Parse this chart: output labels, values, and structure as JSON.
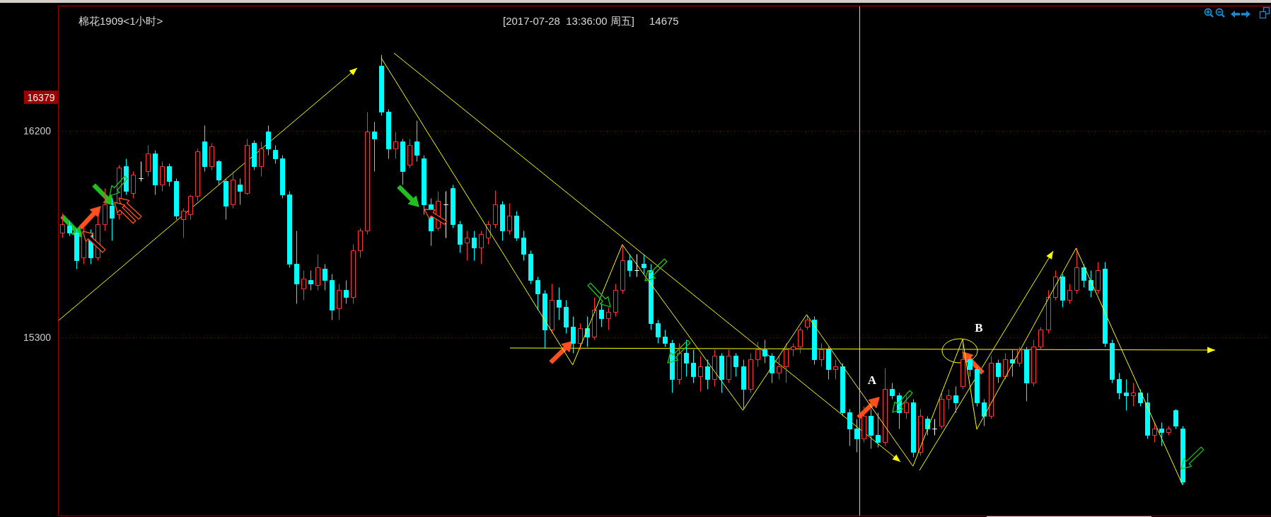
{
  "chart_data": {
    "type": "candlestick",
    "title": "棉花1909<1小时>",
    "subtitle": "[2017-07-28  13:36:00 周五]",
    "categories": [
      null,
      null,
      null,
      null,
      null,
      null,
      null,
      null,
      null,
      null,
      null,
      null,
      null,
      null,
      null,
      null,
      null,
      null,
      null,
      null,
      null,
      null,
      null,
      null,
      null,
      null,
      null,
      null,
      null,
      null,
      null,
      null,
      null,
      null,
      null,
      null,
      null,
      null,
      null,
      null,
      null,
      null,
      null,
      null,
      null,
      null,
      null,
      null,
      null,
      null,
      null,
      null,
      null,
      null,
      null,
      null,
      null,
      null,
      null,
      null,
      null,
      null,
      null,
      null,
      null,
      null,
      null,
      null,
      null,
      null,
      null,
      null,
      null,
      null,
      null,
      null,
      null,
      null,
      null,
      null,
      null,
      null,
      null,
      null,
      null,
      null,
      null,
      null,
      null,
      null,
      null,
      null,
      null,
      null,
      null,
      null,
      null,
      null,
      null,
      null,
      null,
      null,
      null,
      null,
      null,
      null,
      null,
      null,
      null,
      null,
      null,
      null,
      null,
      null,
      null,
      null,
      null,
      null,
      null,
      null,
      null,
      null,
      null,
      null,
      null,
      null,
      null,
      null,
      null,
      null,
      null,
      null,
      null,
      null,
      null,
      null,
      null,
      null,
      null,
      null,
      null,
      null,
      null,
      null,
      null,
      null,
      null,
      null,
      null,
      null,
      null,
      null,
      null,
      null,
      null,
      null,
      null,
      null,
      null,
      null,
      null,
      null,
      null,
      null,
      null,
      null,
      null,
      null,
      null,
      null,
      null
    ],
    "ohlc": [
      [
        15757,
        15844,
        15736,
        15793
      ],
      [
        15786,
        15808,
        15743,
        15757
      ],
      [
        15757,
        15772,
        15599,
        15635
      ],
      [
        15649,
        15779,
        15620,
        15757
      ],
      [
        15757,
        15772,
        15620,
        15649
      ],
      [
        15649,
        15837,
        15635,
        15793
      ],
      [
        15793,
        15952,
        15765,
        15880
      ],
      [
        15873,
        15909,
        15721,
        15822
      ],
      [
        15837,
        16053,
        15815,
        16039
      ],
      [
        16046,
        16082,
        15923,
        15938
      ],
      [
        15930,
        16024,
        15909,
        16010
      ],
      [
        15995,
        16067,
        15981,
        15995
      ],
      [
        16024,
        16139,
        16003,
        16103
      ],
      [
        16103,
        16118,
        15923,
        15966
      ],
      [
        15966,
        16067,
        15938,
        16046
      ],
      [
        16046,
        16060,
        15959,
        15981
      ],
      [
        15981,
        15995,
        15815,
        15829
      ],
      [
        15815,
        15865,
        15736,
        15851
      ],
      [
        15837,
        15923,
        15815,
        15916
      ],
      [
        15916,
        16125,
        15894,
        16111
      ],
      [
        16154,
        16226,
        16024,
        16046
      ],
      [
        16046,
        16147,
        16031,
        16132
      ],
      [
        16067,
        16075,
        15966,
        15988
      ],
      [
        15981,
        15995,
        15815,
        15873
      ],
      [
        15880,
        16024,
        15865,
        15988
      ],
      [
        15966,
        15995,
        15880,
        15938
      ],
      [
        15930,
        16168,
        15923,
        16139
      ],
      [
        16147,
        16161,
        16031,
        16046
      ],
      [
        16046,
        16154,
        16003,
        16125
      ],
      [
        16197,
        16226,
        16096,
        16125
      ],
      [
        16118,
        16139,
        16060,
        16082
      ],
      [
        16082,
        16096,
        15909,
        15923
      ],
      [
        15923,
        15938,
        15606,
        15620
      ],
      [
        15620,
        15765,
        15447,
        15534
      ],
      [
        15512,
        15592,
        15462,
        15555
      ],
      [
        15548,
        15592,
        15505,
        15534
      ],
      [
        15527,
        15664,
        15505,
        15606
      ],
      [
        15599,
        15620,
        15505,
        15548
      ],
      [
        15548,
        15577,
        15375,
        15418
      ],
      [
        15426,
        15534,
        15375,
        15505
      ],
      [
        15505,
        15548,
        15447,
        15476
      ],
      [
        15476,
        15707,
        15447,
        15678
      ],
      [
        15678,
        15779,
        15649,
        15765
      ],
      [
        15765,
        16284,
        15750,
        16197
      ],
      [
        16197,
        16240,
        16024,
        16168
      ],
      [
        16486,
        16536,
        16269,
        16284
      ],
      [
        16284,
        16298,
        16082,
        16125
      ],
      [
        16125,
        16197,
        16082,
        16154
      ],
      [
        16154,
        16168,
        15966,
        16024
      ],
      [
        16053,
        16168,
        16039,
        16139
      ],
      [
        16154,
        16248,
        16067,
        16096
      ],
      [
        16082,
        16096,
        15837,
        15880
      ],
      [
        15880,
        15909,
        15700,
        15765
      ],
      [
        15779,
        15938,
        15765,
        15894
      ],
      [
        15880,
        15938,
        15736,
        15880
      ],
      [
        15952,
        15966,
        15779,
        15793
      ],
      [
        15793,
        15808,
        15671,
        15707
      ],
      [
        15714,
        15765,
        15635,
        15736
      ],
      [
        15736,
        15765,
        15635,
        15692
      ],
      [
        15692,
        15765,
        15620,
        15750
      ],
      [
        15736,
        15808,
        15707,
        15793
      ],
      [
        15793,
        15940,
        15779,
        15880
      ],
      [
        15880,
        15894,
        15721,
        15765
      ],
      [
        15765,
        15887,
        15750,
        15829
      ],
      [
        15829,
        15851,
        15721,
        15736
      ],
      [
        15736,
        15765,
        15635,
        15664
      ],
      [
        15664,
        15678,
        15534,
        15548
      ],
      [
        15548,
        15563,
        15418,
        15491
      ],
      [
        15491,
        15505,
        15253,
        15332
      ],
      [
        15332,
        15534,
        15318,
        15462
      ],
      [
        15462,
        15519,
        15375,
        15433
      ],
      [
        15433,
        15462,
        15318,
        15346
      ],
      [
        15346,
        15390,
        15231,
        15274
      ],
      [
        15274,
        15361,
        15245,
        15339
      ],
      [
        15339,
        15390,
        15260,
        15303
      ],
      [
        15303,
        15476,
        15289,
        15418
      ],
      [
        15418,
        15447,
        15346,
        15382
      ],
      [
        15382,
        15433,
        15332,
        15411
      ],
      [
        15411,
        15534,
        15390,
        15505
      ],
      [
        15505,
        15700,
        15491,
        15635
      ],
      [
        15635,
        15664,
        15563,
        15592
      ],
      [
        15592,
        15664,
        15563,
        15592
      ],
      [
        15620,
        15664,
        15577,
        15606
      ],
      [
        15592,
        15620,
        15332,
        15361
      ],
      [
        15361,
        15375,
        15274,
        15303
      ],
      [
        15303,
        15332,
        15260,
        15274
      ],
      [
        15274,
        15289,
        15058,
        15116
      ],
      [
        15116,
        15274,
        15094,
        15231
      ],
      [
        15231,
        15289,
        15130,
        15188
      ],
      [
        15188,
        15245,
        15101,
        15130
      ],
      [
        15130,
        15217,
        15065,
        15173
      ],
      [
        15173,
        15202,
        15072,
        15116
      ],
      [
        15116,
        15245,
        15087,
        15217
      ],
      [
        15217,
        15231,
        15058,
        15116
      ],
      [
        15116,
        15245,
        15101,
        15217
      ],
      [
        15217,
        15231,
        15130,
        15173
      ],
      [
        15173,
        15202,
        14986,
        15072
      ],
      [
        15072,
        15231,
        15058,
        15202
      ],
      [
        15202,
        15281,
        15173,
        15245
      ],
      [
        15245,
        15289,
        15188,
        15217
      ],
      [
        15217,
        15231,
        15101,
        15145
      ],
      [
        15145,
        15217,
        15116,
        15173
      ],
      [
        15173,
        15274,
        15101,
        15245
      ],
      [
        15245,
        15274,
        15217,
        15260
      ],
      [
        15260,
        15346,
        15231,
        15332
      ],
      [
        15346,
        15397,
        15332,
        15375
      ],
      [
        15375,
        15390,
        15181,
        15202
      ],
      [
        15202,
        15274,
        15173,
        15245
      ],
      [
        15245,
        15260,
        15116,
        15159
      ],
      [
        15159,
        15202,
        15116,
        15173
      ],
      [
        15173,
        15188,
        14957,
        14971
      ],
      [
        14971,
        14986,
        14827,
        14899
      ],
      [
        14899,
        14943,
        14798,
        14856
      ],
      [
        14856,
        15000,
        14842,
        14957
      ],
      [
        14957,
        14986,
        14813,
        14871
      ],
      [
        14871,
        14971,
        14820,
        14842
      ],
      [
        14842,
        15166,
        14827,
        15072
      ],
      [
        15072,
        15101,
        15029,
        15044
      ],
      [
        15044,
        15058,
        14899,
        14971
      ],
      [
        14971,
        15044,
        14943,
        15015
      ],
      [
        15015,
        15029,
        14777,
        14798
      ],
      [
        14798,
        14986,
        14784,
        14957
      ],
      [
        14943,
        14957,
        14871,
        14899
      ],
      [
        14899,
        14943,
        14871,
        14899
      ],
      [
        14914,
        15058,
        14899,
        15029
      ],
      [
        15029,
        15072,
        14986,
        15044
      ],
      [
        15044,
        15087,
        14971,
        15015
      ],
      [
        15087,
        15296,
        15072,
        15202
      ],
      [
        15202,
        15217,
        15130,
        15159
      ],
      [
        15159,
        15173,
        15000,
        15015
      ],
      [
        15015,
        15029,
        14914,
        14957
      ],
      [
        14957,
        15217,
        14943,
        15188
      ],
      [
        15188,
        15202,
        15101,
        15130
      ],
      [
        15130,
        15231,
        15116,
        15202
      ],
      [
        15202,
        15245,
        15130,
        15188
      ],
      [
        15188,
        15260,
        15173,
        15245
      ],
      [
        15245,
        15260,
        15022,
        15101
      ],
      [
        15101,
        15289,
        15087,
        15260
      ],
      [
        15260,
        15346,
        15245,
        15332
      ],
      [
        15332,
        15505,
        15318,
        15476
      ],
      [
        15476,
        15592,
        15462,
        15563
      ],
      [
        15563,
        15577,
        15433,
        15462
      ],
      [
        15462,
        15534,
        15447,
        15505
      ],
      [
        15505,
        15692,
        15491,
        15606
      ],
      [
        15606,
        15620,
        15519,
        15548
      ],
      [
        15548,
        15592,
        15476,
        15505
      ],
      [
        15505,
        15628,
        15491,
        15592
      ],
      [
        15599,
        15628,
        15260,
        15274
      ],
      [
        15274,
        15289,
        15101,
        15116
      ],
      [
        15116,
        15145,
        15029,
        15058
      ],
      [
        15058,
        15116,
        14979,
        15044
      ],
      [
        15044,
        15101,
        15000,
        15058
      ],
      [
        15058,
        15072,
        15000,
        15015
      ],
      [
        15015,
        15058,
        14856,
        14871
      ],
      [
        14871,
        14928,
        14842,
        14899
      ],
      [
        14899,
        14928,
        14827,
        14885
      ],
      [
        14885,
        14914,
        14871,
        14899
      ],
      [
        14979,
        14986,
        14899,
        14914
      ],
      [
        14899,
        14914,
        14657,
        14669
      ],
      null,
      null,
      null,
      null,
      null,
      null,
      null,
      null,
      null,
      null,
      null,
      null
    ],
    "colors": [
      "#ff3333",
      "#00ffff",
      "#00ffff",
      "#ff3333",
      "#00ffff",
      "#ff3333",
      "#ff3333",
      "#00ffff",
      "#ff3333",
      "#00ffff",
      "#ff3333",
      "#ffffff",
      "#ff3333",
      "#00ffff",
      "#ff3333",
      "#00ffff",
      "#00ffff",
      "#ff3333",
      "#ff3333",
      "#ff3333",
      "#00ffff",
      "#ff3333",
      "#00ffff",
      "#00ffff",
      "#ff3333",
      "#00ffff",
      "#ff3333",
      "#00ffff",
      "#ff3333",
      "#00ffff",
      "#00ffff",
      "#00ffff",
      "#00ffff",
      "#00ffff",
      "#ff3333",
      "#00ffff",
      "#ff3333",
      "#00ffff",
      "#00ffff",
      "#ff3333",
      "#00ffff",
      "#ff3333",
      "#ff3333",
      "#ff3333",
      "#00ffff",
      "#00ffff",
      "#00ffff",
      "#ff3333",
      "#00ffff",
      "#ff3333",
      "#00ffff",
      "#00ffff",
      "#00ffff",
      "#ff3333",
      "#ffffff",
      "#00ffff",
      "#00ffff",
      "#ff3333",
      "#00ffff",
      "#ff3333",
      "#ff3333",
      "#ff3333",
      "#00ffff",
      "#ff3333",
      "#00ffff",
      "#00ffff",
      "#00ffff",
      "#00ffff",
      "#00ffff",
      "#ff3333",
      "#00ffff",
      "#00ffff",
      "#00ffff",
      "#ff3333",
      "#00ffff",
      "#ff3333",
      "#00ffff",
      "#ff3333",
      "#ff3333",
      "#ff3333",
      "#00ffff",
      "#ffffff",
      "#00ffff",
      "#00ffff",
      "#00ffff",
      "#00ffff",
      "#00ffff",
      "#ff3333",
      "#00ffff",
      "#00ffff",
      "#ff3333",
      "#00ffff",
      "#ff3333",
      "#00ffff",
      "#ff3333",
      "#00ffff",
      "#00ffff",
      "#ff3333",
      "#ff3333",
      "#00ffff",
      "#00ffff",
      "#ff3333",
      "#ff3333",
      "#ff3333",
      "#ff3333",
      "#ff3333",
      "#00ffff",
      "#ff3333",
      "#00ffff",
      "#ff3333",
      "#00ffff",
      "#00ffff",
      "#00ffff",
      "#ff3333",
      "#00ffff",
      "#00ffff",
      "#ff3333",
      "#00ffff",
      "#00ffff",
      "#ff3333",
      "#00ffff",
      "#ff3333",
      "#00ffff",
      "#ffffff",
      "#ff3333",
      "#ff3333",
      "#00ffff",
      "#ff3333",
      "#00ffff",
      "#00ffff",
      "#00ffff",
      "#ff3333",
      "#00ffff",
      "#ff3333",
      "#00ffff",
      "#ff3333",
      "#00ffff",
      "#ff3333",
      "#ff3333",
      "#ff3333",
      "#ff3333",
      "#00ffff",
      "#ff3333",
      "#ff3333",
      "#00ffff",
      "#00ffff",
      "#ff3333",
      "#00ffff",
      "#00ffff",
      "#00ffff",
      "#00ffff",
      "#ff3333",
      "#00ffff",
      "#00ffff",
      "#ff3333",
      "#00ffff",
      "#ff3333",
      "#00ffff",
      "#00ffff",
      null,
      null,
      null,
      null,
      null,
      null,
      null,
      null,
      null,
      null,
      null,
      null
    ],
    "series": [
      {
        "type": "line",
        "color": "#ffff00",
        "values": [
          null,
          null,
          null,
          null,
          null,
          null,
          null,
          null,
          null,
          null,
          null,
          null,
          null,
          null,
          null,
          null,
          null,
          null,
          null,
          null,
          null,
          null,
          null,
          null,
          null,
          null,
          null,
          null,
          null,
          null,
          null,
          null,
          null,
          null,
          null,
          null,
          null,
          null,
          null,
          null,
          null,
          null,
          null,
          null,
          null,
          16519,
          16469,
          16420,
          16370,
          16320,
          16271,
          16221,
          16171,
          16122,
          16072,
          16022,
          15973,
          15923,
          15873,
          15824,
          15774,
          15724,
          15675,
          15625,
          15575,
          15526,
          15476,
          15426,
          15377,
          15327,
          15277,
          15228,
          15178,
          15253,
          15328,
          15403,
          15479,
          15554,
          15629,
          15704,
          15661,
          15619,
          15576,
          15534,
          15491,
          15448,
          15406,
          15363,
          15321,
          15278,
          15236,
          15193,
          15150,
          15108,
          15065,
          15023,
          14980,
          15026,
          15073,
          15119,
          15166,
          15212,
          15259,
          15305,
          15352,
          15398,
          15354,
          15310,
          15266,
          15221,
          15177,
          15133,
          15089,
          15045,
          15001,
          14957,
          14913,
          14868,
          14824,
          14780,
          14736,
          14815,
          14894,
          14973,
          15053,
          15132,
          15211,
          15290,
          15094,
          14897,
          14954,
          15010,
          15067,
          15123,
          15180,
          15236,
          15293,
          15349,
          15406,
          15462,
          15519,
          15575,
          15632,
          15688,
          15619,
          15550,
          15482,
          15413,
          15344,
          15275,
          15206,
          15138,
          15069,
          15000,
          14931,
          14862,
          14794,
          14725,
          14656,
          null,
          null,
          null,
          null,
          null,
          null,
          null,
          null,
          null,
          null,
          null,
          null
        ]
      }
    ],
    "ylim": [
      14517,
      16748
    ],
    "yticks": [
      15300,
      16200
    ],
    "grid": "y",
    "tick_labels": "y",
    "annotations": [
      "16379",
      "14675",
      "A",
      "B"
    ]
  }
}
